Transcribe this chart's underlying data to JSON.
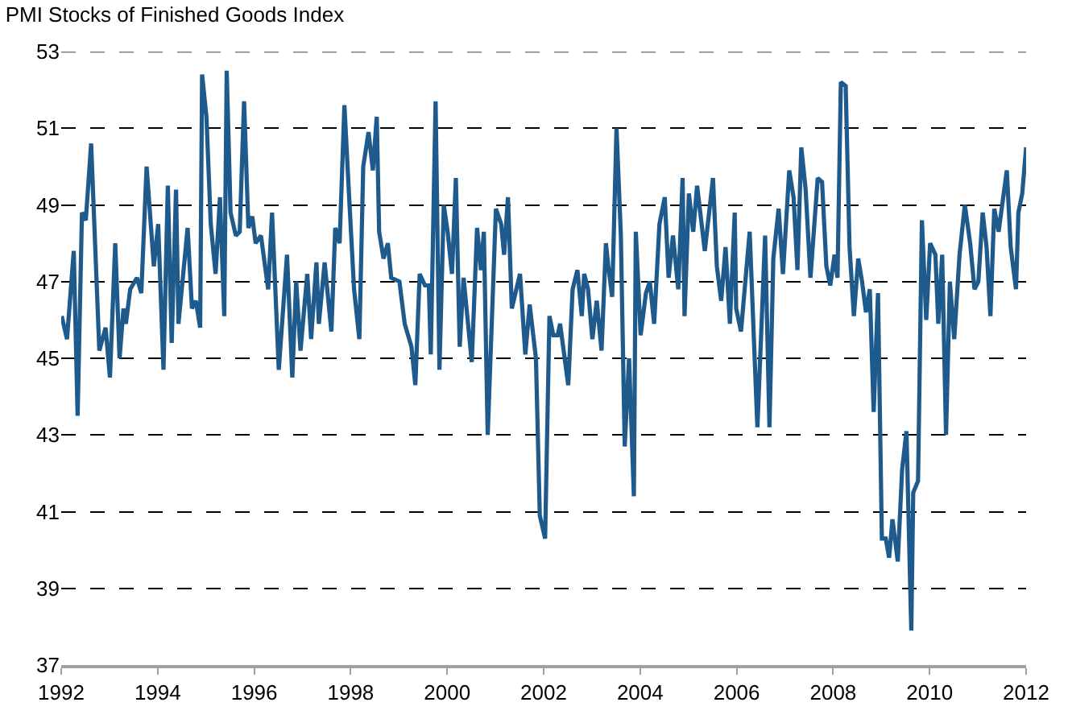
{
  "chart_data": {
    "type": "line",
    "title": "PMI Stocks of Finished Goods Index",
    "x": [
      1992.01,
      1992.12,
      1992.26,
      1992.34,
      1992.43,
      1992.51,
      1992.62,
      1992.79,
      1992.92,
      1993.01,
      1993.12,
      1993.21,
      1993.29,
      1993.34,
      1993.43,
      1993.57,
      1993.66,
      1993.77,
      1993.92,
      1994.01,
      1994.12,
      1994.21,
      1994.29,
      1994.38,
      1994.43,
      1994.62,
      1994.71,
      1994.79,
      1994.88,
      1994.92,
      1995.01,
      1995.1,
      1995.2,
      1995.29,
      1995.38,
      1995.43,
      1995.51,
      1995.62,
      1995.7,
      1995.79,
      1995.88,
      1995.96,
      1996.03,
      1996.14,
      1996.29,
      1996.37,
      1996.51,
      1996.68,
      1996.79,
      1996.87,
      1996.96,
      1997.1,
      1997.18,
      1997.29,
      1997.34,
      1997.46,
      1997.6,
      1997.68,
      1997.77,
      1997.87,
      1997.96,
      1998.07,
      1998.18,
      1998.26,
      1998.37,
      1998.46,
      1998.54,
      1998.59,
      1998.68,
      1998.77,
      1998.84,
      1999.01,
      1999.12,
      1999.26,
      1999.34,
      1999.43,
      1999.54,
      1999.62,
      1999.66,
      1999.76,
      1999.84,
      1999.93,
      2000.01,
      2000.1,
      2000.18,
      2000.26,
      2000.34,
      2000.51,
      2000.62,
      2000.7,
      2000.76,
      2000.84,
      2001.01,
      2001.12,
      2001.18,
      2001.26,
      2001.34,
      2001.51,
      2001.62,
      2001.71,
      2001.84,
      2001.92,
      2002.03,
      2002.12,
      2002.2,
      2002.29,
      2002.34,
      2002.51,
      2002.6,
      2002.7,
      2002.79,
      2002.84,
      2002.92,
      2003.01,
      2003.1,
      2003.2,
      2003.29,
      2003.34,
      2003.42,
      2003.51,
      2003.6,
      2003.68,
      2003.77,
      2003.87,
      2003.91,
      2004.01,
      2004.12,
      2004.2,
      2004.29,
      2004.4,
      2004.51,
      2004.59,
      2004.68,
      2004.79,
      2004.88,
      2004.92,
      2005.01,
      2005.1,
      2005.18,
      2005.34,
      2005.51,
      2005.59,
      2005.68,
      2005.77,
      2005.86,
      2005.96,
      2005.99,
      2006.09,
      2006.27,
      2006.43,
      2006.59,
      2006.68,
      2006.76,
      2006.87,
      2006.96,
      2007.09,
      2007.18,
      2007.26,
      2007.34,
      2007.43,
      2007.53,
      2007.68,
      2007.77,
      2007.86,
      2007.94,
      2008.03,
      2008.09,
      2008.16,
      2008.26,
      2008.34,
      2008.43,
      2008.52,
      2008.6,
      2008.68,
      2008.76,
      2008.84,
      2008.93,
      2009.01,
      2009.09,
      2009.16,
      2009.23,
      2009.34,
      2009.43,
      2009.52,
      2009.62,
      2009.66,
      2009.76,
      2009.84,
      2009.93,
      2010.01,
      2010.12,
      2010.18,
      2010.26,
      2010.34,
      2010.42,
      2010.51,
      2010.62,
      2010.73,
      2010.84,
      2010.93,
      2011.01,
      2011.1,
      2011.18,
      2011.26,
      2011.34,
      2011.43,
      2011.6,
      2011.68,
      2011.79,
      2011.84,
      2011.92,
      2012.0
    ],
    "series": [
      {
        "color": "#1f5a8c",
        "values": [
          46.1,
          45.5,
          47.8,
          43.5,
          48.8,
          48.6,
          50.6,
          45.2,
          45.8,
          44.5,
          48.0,
          45.0,
          46.3,
          45.9,
          46.8,
          47.1,
          46.7,
          50.0,
          47.4,
          48.5,
          44.7,
          49.5,
          45.4,
          49.4,
          45.9,
          48.4,
          46.3,
          46.5,
          45.8,
          52.4,
          51.3,
          48.5,
          47.2,
          49.2,
          46.1,
          52.5,
          48.8,
          48.2,
          48.3,
          51.7,
          48.4,
          48.7,
          48.0,
          48.2,
          46.8,
          48.8,
          44.7,
          47.7,
          44.5,
          47.0,
          45.2,
          47.2,
          45.5,
          47.5,
          45.9,
          47.5,
          45.7,
          48.4,
          48.0,
          51.6,
          49.4,
          46.8,
          45.5,
          50.0,
          50.9,
          49.9,
          51.3,
          48.3,
          47.6,
          48.0,
          47.1,
          47.0,
          45.9,
          45.3,
          44.3,
          47.2,
          46.9,
          46.9,
          45.1,
          51.7,
          44.7,
          49.0,
          48.3,
          47.2,
          49.7,
          45.3,
          47.1,
          44.9,
          48.4,
          47.3,
          48.3,
          43.0,
          48.9,
          48.5,
          47.7,
          49.2,
          46.3,
          47.2,
          45.1,
          46.4,
          45.0,
          40.9,
          40.3,
          46.1,
          45.6,
          45.6,
          45.9,
          44.3,
          46.8,
          47.3,
          46.1,
          47.2,
          46.8,
          45.5,
          46.5,
          45.2,
          48.0,
          47.4,
          46.6,
          51.0,
          48.2,
          42.7,
          45.0,
          41.4,
          48.3,
          45.6,
          46.7,
          47.0,
          45.9,
          48.5,
          49.2,
          47.1,
          48.2,
          46.8,
          49.7,
          46.1,
          49.3,
          48.3,
          49.5,
          47.8,
          49.7,
          47.4,
          46.5,
          47.9,
          45.9,
          48.8,
          46.3,
          45.7,
          48.3,
          43.2,
          48.2,
          43.2,
          47.6,
          48.9,
          47.2,
          49.9,
          49.2,
          47.3,
          50.5,
          49.4,
          47.1,
          49.7,
          49.6,
          47.4,
          46.9,
          47.7,
          47.1,
          52.2,
          52.1,
          47.9,
          46.1,
          47.6,
          47.0,
          46.2,
          46.8,
          43.6,
          46.7,
          40.3,
          40.3,
          39.8,
          40.8,
          39.7,
          42.1,
          43.1,
          37.9,
          41.5,
          41.8,
          48.6,
          46.0,
          48.0,
          47.7,
          45.9,
          47.7,
          43.0,
          47.0,
          45.5,
          47.7,
          49.0,
          48.0,
          46.8,
          47.0,
          48.8,
          47.9,
          46.1,
          48.9,
          48.3,
          49.9,
          47.9,
          46.8,
          48.8,
          49.3,
          50.5
        ]
      }
    ],
    "xlim": [
      1992,
      2012
    ],
    "xticks": [
      1992,
      1994,
      1996,
      1998,
      2000,
      2002,
      2004,
      2006,
      2008,
      2010,
      2012
    ],
    "ylim": [
      37,
      53
    ],
    "yticks": [
      37,
      39,
      41,
      43,
      45,
      47,
      49,
      51,
      53
    ],
    "grid": "y",
    "marker": "none",
    "line_style": "solid"
  }
}
